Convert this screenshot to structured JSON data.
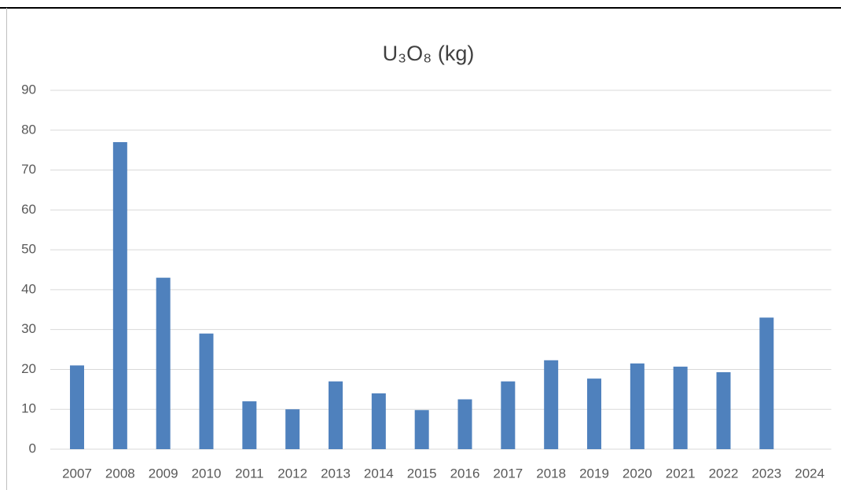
{
  "chart_data": {
    "type": "bar",
    "title": "U₃O₈ (kg)",
    "categories": [
      "2007",
      "2008",
      "2009",
      "2010",
      "2011",
      "2012",
      "2013",
      "2014",
      "2015",
      "2016",
      "2017",
      "2018",
      "2019",
      "2020",
      "2021",
      "2022",
      "2023",
      "2024"
    ],
    "values": [
      21,
      77,
      43,
      29,
      12,
      10,
      17,
      14,
      9.8,
      12.5,
      17,
      22.3,
      17.7,
      21.5,
      20.7,
      19.3,
      33,
      null
    ],
    "color": "#4f81bd",
    "ylim": [
      0,
      90
    ],
    "yticks": [
      0,
      10,
      20,
      30,
      40,
      50,
      60,
      70,
      80,
      90
    ],
    "grid": true
  }
}
